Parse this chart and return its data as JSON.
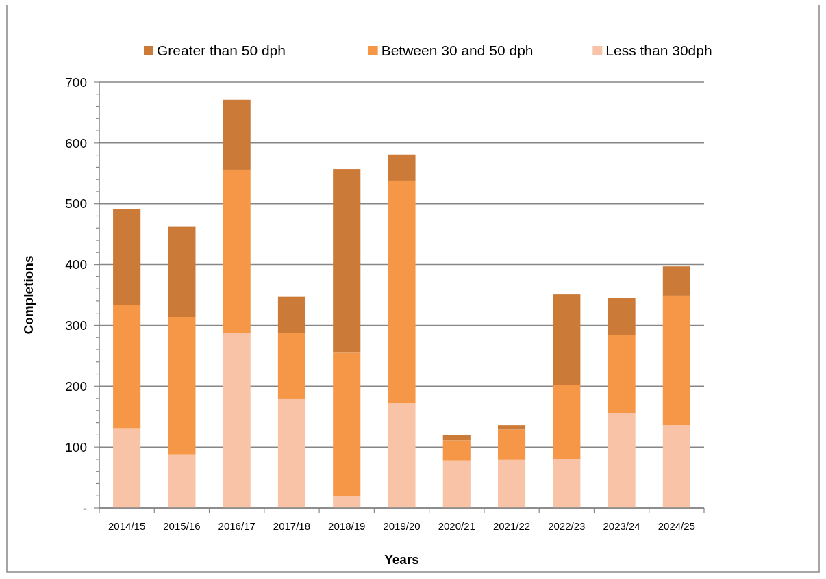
{
  "chart_data": {
    "type": "bar",
    "stacked": true,
    "xlabel": "Years",
    "ylabel": "Completions",
    "categories": [
      "2014/15",
      "2015/16",
      "2016/17",
      "2017/18",
      "2018/19",
      "2019/20",
      "2020/21",
      "2021/22",
      "2022/23",
      "2023/24",
      "2024/25"
    ],
    "series": [
      {
        "name": "Less than 30dph",
        "color": "#f8c3a7",
        "values": [
          130,
          87,
          288,
          179,
          19,
          172,
          78,
          79,
          81,
          156,
          136
        ]
      },
      {
        "name": "Between 30 and 50 dph",
        "color": "#f59747",
        "values": [
          204,
          227,
          268,
          109,
          236,
          366,
          33,
          50,
          121,
          128,
          213
        ]
      },
      {
        "name": "Greater than 50 dph",
        "color": "#cc7a37",
        "values": [
          157,
          149,
          115,
          59,
          302,
          43,
          9,
          7,
          149,
          61,
          48
        ]
      }
    ],
    "ylim": [
      0,
      700
    ],
    "yticks": [
      {
        "value": 0,
        "label": "-"
      },
      {
        "value": 20,
        "label": null
      },
      {
        "value": 40,
        "label": null
      },
      {
        "value": 60,
        "label": null
      },
      {
        "value": 80,
        "label": null
      },
      100,
      {
        "value": 120,
        "label": null
      },
      {
        "value": 140,
        "label": null
      },
      {
        "value": 160,
        "label": null
      },
      {
        "value": 180,
        "label": null
      },
      200,
      {
        "value": 220,
        "label": null
      },
      {
        "value": 240,
        "label": null
      },
      {
        "value": 260,
        "label": null
      },
      {
        "value": 280,
        "label": null
      },
      300,
      {
        "value": 320,
        "label": null
      },
      {
        "value": 340,
        "label": null
      },
      {
        "value": 360,
        "label": null
      },
      {
        "value": 380,
        "label": null
      },
      400,
      {
        "value": 420,
        "label": null
      },
      {
        "value": 440,
        "label": null
      },
      {
        "value": 460,
        "label": null
      },
      {
        "value": 480,
        "label": null
      },
      500,
      {
        "value": 520,
        "label": null
      },
      {
        "value": 540,
        "label": null
      },
      {
        "value": 560,
        "label": null
      },
      {
        "value": 580,
        "label": null
      },
      600,
      {
        "value": 620,
        "label": null
      },
      {
        "value": 640,
        "label": null
      },
      {
        "value": 660,
        "label": null
      },
      {
        "value": 680,
        "label": null
      },
      700
    ],
    "grid": "y",
    "legend": "top"
  }
}
